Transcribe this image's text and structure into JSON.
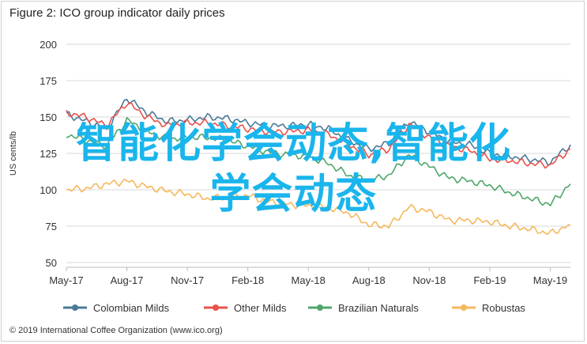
{
  "title": "Figure 2: ICO group indicator daily prices",
  "footer": "© 2019 International Coffee Organization (www.ico.org)",
  "overlay": {
    "line1": "智能化学会动态,智能化",
    "line2": "学会动态"
  },
  "chart_data": {
    "type": "line",
    "ylabel": "US cents/lb",
    "ylim": [
      50,
      200
    ],
    "yticks": [
      50,
      75,
      100,
      125,
      150,
      175,
      200
    ],
    "x": [
      "2017-05",
      "2017-06",
      "2017-07",
      "2017-08",
      "2017-09",
      "2017-10",
      "2017-11",
      "2017-12",
      "2018-01",
      "2018-02",
      "2018-03",
      "2018-04",
      "2018-05",
      "2018-06",
      "2018-07",
      "2018-08",
      "2018-09",
      "2018-10",
      "2018-11",
      "2018-12",
      "2019-01",
      "2019-02",
      "2019-03",
      "2019-04",
      "2019-05",
      "2019-06"
    ],
    "xticks": [
      "May-17",
      "Aug-17",
      "Nov-17",
      "Feb-18",
      "May-18",
      "Aug-18",
      "Nov-18",
      "Feb-19",
      "May-19"
    ],
    "grid": true,
    "legend": "bottom",
    "series": [
      {
        "name": "Colombian Milds",
        "color": "#4a7a99",
        "values": [
          152,
          147,
          142,
          163,
          153,
          147,
          148,
          150,
          149,
          146,
          144,
          144,
          145,
          142,
          134,
          128,
          132,
          147,
          140,
          133,
          131,
          125,
          123,
          121,
          119,
          131
        ]
      },
      {
        "name": "Other Milds",
        "color": "#e8524a",
        "values": [
          153,
          150,
          144,
          160,
          150,
          144,
          146,
          146,
          144,
          142,
          140,
          140,
          141,
          138,
          131,
          124,
          128,
          145,
          136,
          130,
          127,
          121,
          120,
          118,
          117,
          128
        ]
      },
      {
        "name": "Brazilian Naturals",
        "color": "#4fa66b",
        "values": [
          138,
          134,
          130,
          148,
          140,
          135,
          136,
          136,
          134,
          130,
          126,
          124,
          123,
          118,
          110,
          106,
          110,
          124,
          116,
          108,
          106,
          103,
          98,
          94,
          90,
          104
        ]
      },
      {
        "name": "Robustas",
        "color": "#f5b85c",
        "values": [
          100,
          101,
          104,
          106,
          102,
          99,
          97,
          94,
          95,
          96,
          92,
          90,
          89,
          88,
          84,
          76,
          75,
          88,
          85,
          79,
          79,
          78,
          75,
          73,
          70,
          76
        ]
      }
    ]
  }
}
